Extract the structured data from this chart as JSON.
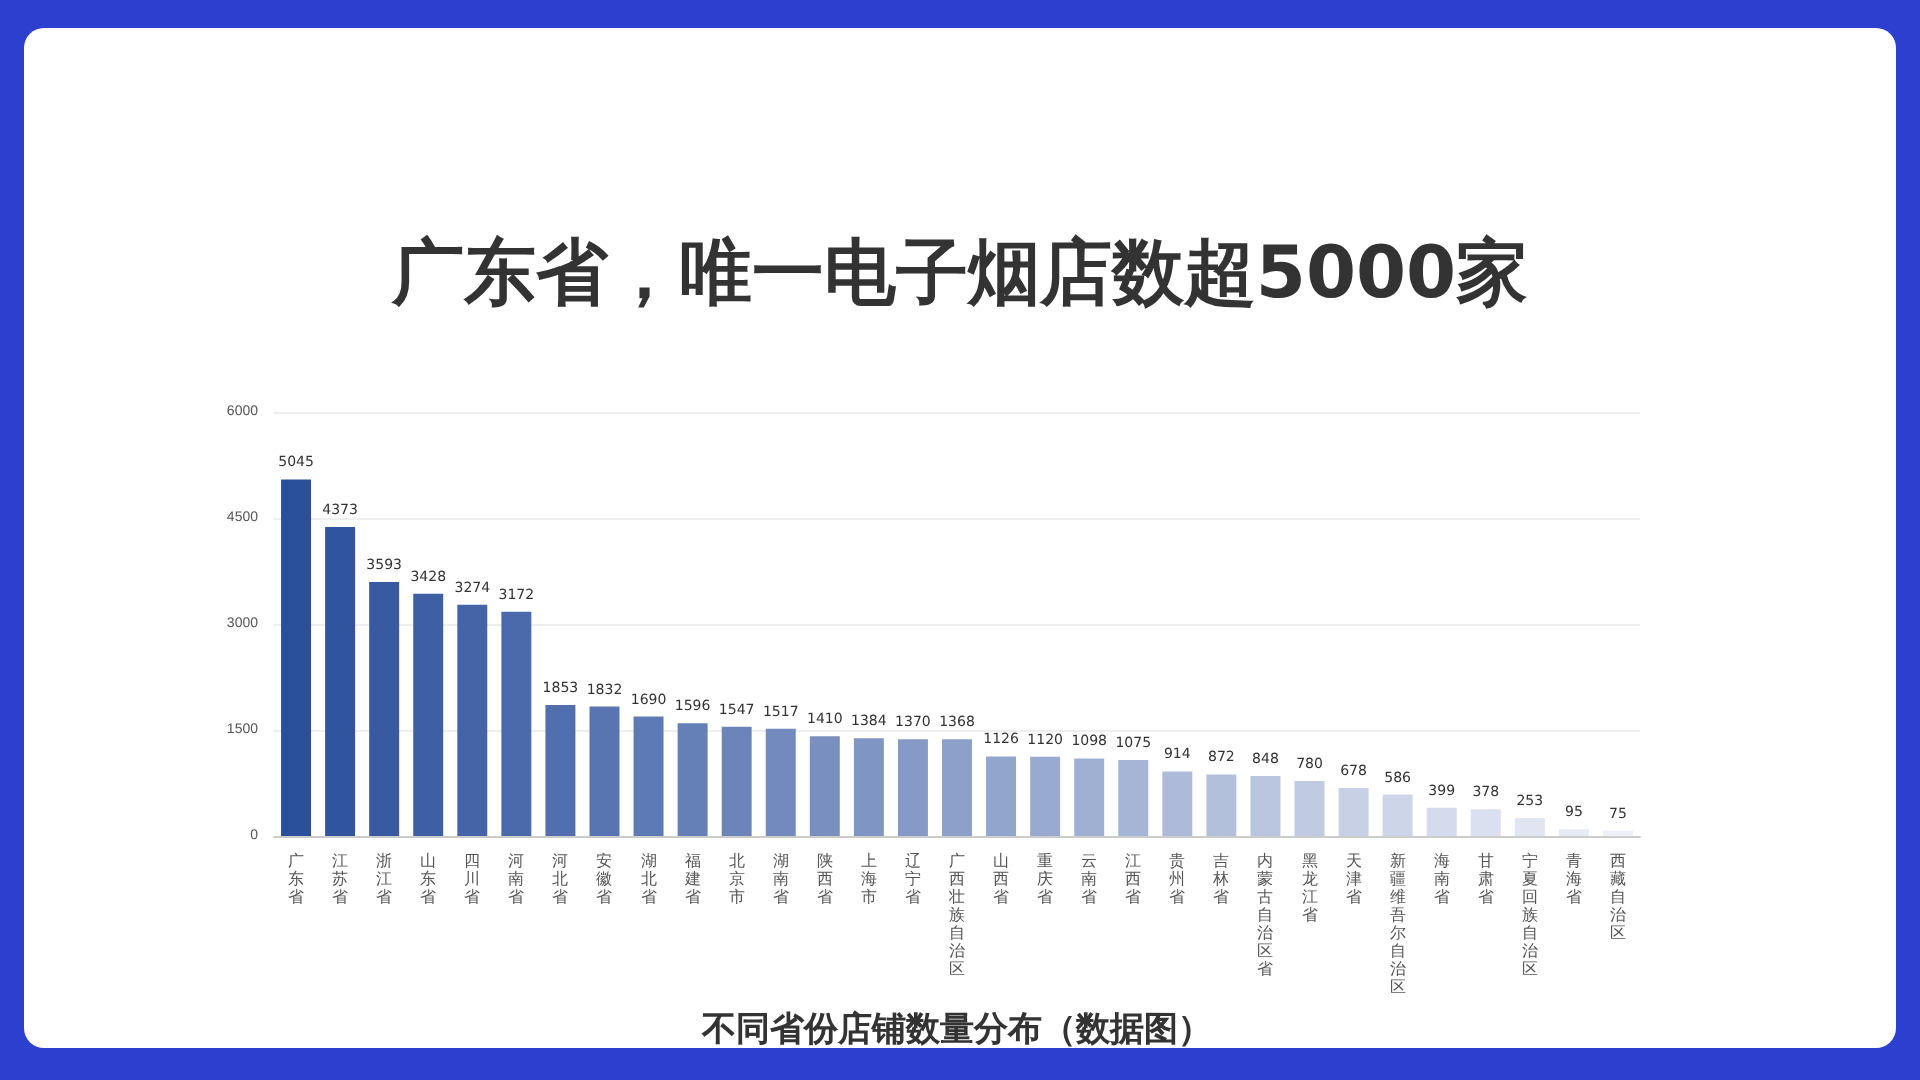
{
  "chart_data": {
    "type": "bar",
    "title": "广东省，唯一电子烟店数超5000家",
    "xlabel": "不同省份店铺数量分布（数据图）",
    "categories": [
      "广东省",
      "江苏省",
      "浙江省",
      "山东省",
      "四川省",
      "河南省",
      "河北省",
      "安徽省",
      "湖北省",
      "福建省",
      "北京市",
      "湖南省",
      "陕西省",
      "上海市",
      "辽宁省",
      "广西壮族自治区",
      "山西省",
      "重庆省",
      "云南省",
      "江西省",
      "贵州省",
      "吉林省",
      "内蒙古自治区省",
      "黑龙江省",
      "天津省",
      "新疆维吾尔自治区",
      "海南省",
      "甘肃省",
      "宁夏回族自治区",
      "青海省",
      "西藏自治区"
    ],
    "values": [
      5045,
      4373,
      3593,
      3428,
      3274,
      3172,
      1853,
      1832,
      1690,
      1596,
      1547,
      1517,
      1410,
      1384,
      1370,
      1368,
      1126,
      1120,
      1098,
      1075,
      914,
      872,
      848,
      780,
      678,
      586,
      399,
      378,
      253,
      95,
      75
    ],
    "colors": [
      "#2a4f9b",
      "#31549e",
      "#375aa1",
      "#3e5fa4",
      "#4464a7",
      "#4b6aab",
      "#516fae",
      "#5875b1",
      "#5e7ab4",
      "#657fb7",
      "#6b85ba",
      "#728abd",
      "#788fc0",
      "#7f95c3",
      "#859ac6",
      "#8ca0ca",
      "#92a5cd",
      "#99aad0",
      "#a0b0d3",
      "#a6b5d6",
      "#adbad9",
      "#b3c0dc",
      "#bac5df",
      "#c0cbe2",
      "#c7d0e5",
      "#cdd5e9",
      "#d4dbec",
      "#dae0ef",
      "#e1e5f2",
      "#e7ebf5",
      "#eef0f8"
    ],
    "ylim": [
      0,
      6000
    ],
    "yticks": [
      0,
      1500,
      3000,
      4500,
      6000
    ],
    "grid": "y",
    "data_labels": true
  }
}
